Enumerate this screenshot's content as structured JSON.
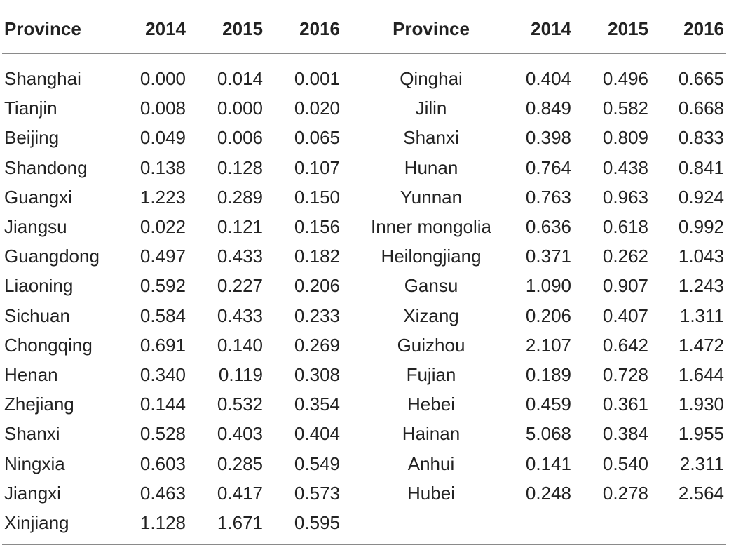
{
  "table": {
    "headers": [
      "Province",
      "2014",
      "2015",
      "2016",
      "Province",
      "2014",
      "2015",
      "2016"
    ],
    "left_rows": [
      [
        "Shanghai",
        "0.000",
        "0.014",
        "0.001"
      ],
      [
        "Tianjin",
        "0.008",
        "0.000",
        "0.020"
      ],
      [
        "Beijing",
        "0.049",
        "0.006",
        "0.065"
      ],
      [
        "Shandong",
        "0.138",
        "0.128",
        "0.107"
      ],
      [
        "Guangxi",
        "1.223",
        "0.289",
        "0.150"
      ],
      [
        "Jiangsu",
        "0.022",
        "0.121",
        "0.156"
      ],
      [
        "Guangdong",
        "0.497",
        "0.433",
        "0.182"
      ],
      [
        "Liaoning",
        "0.592",
        "0.227",
        "0.206"
      ],
      [
        "Sichuan",
        "0.584",
        "0.433",
        "0.233"
      ],
      [
        "Chongqing",
        "0.691",
        "0.140",
        "0.269"
      ],
      [
        "Henan",
        "0.340",
        "0.119",
        "0.308"
      ],
      [
        "Zhejiang",
        "0.144",
        "0.532",
        "0.354"
      ],
      [
        "Shanxi",
        "0.528",
        "0.403",
        "0.404"
      ],
      [
        "Ningxia",
        "0.603",
        "0.285",
        "0.549"
      ],
      [
        "Jiangxi",
        "0.463",
        "0.417",
        "0.573"
      ],
      [
        "Xinjiang",
        "1.128",
        "1.671",
        "0.595"
      ]
    ],
    "right_rows": [
      [
        "Qinghai",
        "0.404",
        "0.496",
        "0.665"
      ],
      [
        "Jilin",
        "0.849",
        "0.582",
        "0.668"
      ],
      [
        "Shanxi",
        "0.398",
        "0.809",
        "0.833"
      ],
      [
        "Hunan",
        "0.764",
        "0.438",
        "0.841"
      ],
      [
        "Yunnan",
        "0.763",
        "0.963",
        "0.924"
      ],
      [
        "Inner mongolia",
        "0.636",
        "0.618",
        "0.992"
      ],
      [
        "Heilongjiang",
        "0.371",
        "0.262",
        "1.043"
      ],
      [
        "Gansu",
        "1.090",
        "0.907",
        "1.243"
      ],
      [
        "Xizang",
        "0.206",
        "0.407",
        "1.311"
      ],
      [
        "Guizhou",
        "2.107",
        "0.642",
        "1.472"
      ],
      [
        "Fujian",
        "0.189",
        "0.728",
        "1.644"
      ],
      [
        "Hebei",
        "0.459",
        "0.361",
        "1.930"
      ],
      [
        "Hainan",
        "5.068",
        "0.384",
        "1.955"
      ],
      [
        "Anhui",
        "0.141",
        "0.540",
        "2.311"
      ],
      [
        "Hubei",
        "0.248",
        "0.278",
        "2.564"
      ]
    ]
  }
}
